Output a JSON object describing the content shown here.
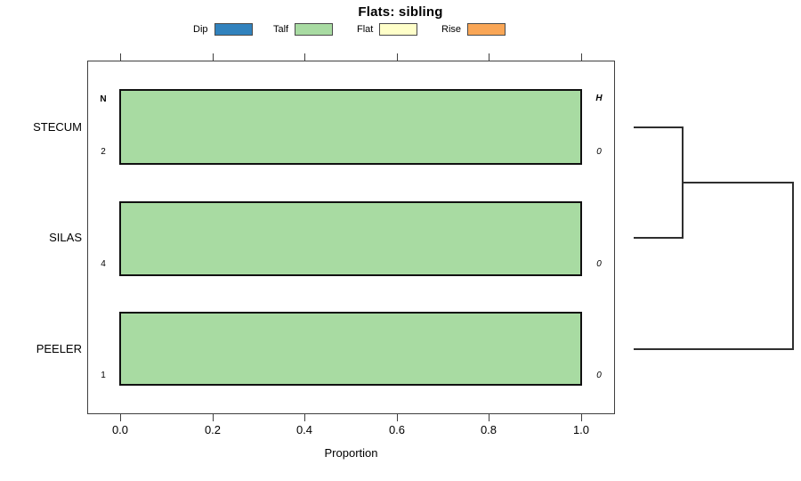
{
  "title": "Flats: sibling",
  "legend": {
    "items": [
      {
        "label": "Dip",
        "color": "#3182BD"
      },
      {
        "label": "Talf",
        "color": "#A8DBA2"
      },
      {
        "label": "Flat",
        "color": "#FFFFC9"
      },
      {
        "label": "Rise",
        "color": "#F9A656"
      }
    ]
  },
  "axes": {
    "xlabel": "Proportion",
    "x_ticks": [
      "0.0",
      "0.2",
      "0.4",
      "0.6",
      "0.8",
      "1.0"
    ]
  },
  "columns": {
    "left_header": "N",
    "right_header": "H"
  },
  "rows": [
    {
      "label": "STECUM",
      "n": "2",
      "h": "0",
      "proportion": 1.0
    },
    {
      "label": "SILAS",
      "n": "4",
      "h": "0",
      "proportion": 1.0
    },
    {
      "label": "PEELER",
      "n": "1",
      "h": "0",
      "proportion": 1.0
    }
  ],
  "chart_data": {
    "type": "bar",
    "orientation": "horizontal",
    "title": "Flats: sibling",
    "xlabel": "Proportion",
    "categories": [
      "STECUM",
      "SILAS",
      "PEELER"
    ],
    "series": [
      {
        "name": "Dip",
        "values": [
          0,
          0,
          0
        ],
        "color": "#3182BD"
      },
      {
        "name": "Talf",
        "values": [
          1.0,
          1.0,
          1.0
        ],
        "color": "#A8DBA2"
      },
      {
        "name": "Flat",
        "values": [
          0,
          0,
          0
        ],
        "color": "#FFFFC9"
      },
      {
        "name": "Rise",
        "values": [
          0,
          0,
          0
        ],
        "color": "#F9A656"
      }
    ],
    "n_values": [
      2,
      4,
      1
    ],
    "h_values": [
      0,
      0,
      0
    ],
    "xlim": [
      0.0,
      1.0
    ],
    "x_ticks": [
      0.0,
      0.2,
      0.4,
      0.6,
      0.8,
      1.0
    ],
    "grid": false,
    "legend_position": "top",
    "dendrogram": {
      "side": "right",
      "merges": [
        {
          "join": [
            "STECUM",
            "SILAS"
          ]
        },
        {
          "join": [
            "STECUM+SILAS",
            "PEELER"
          ]
        }
      ]
    }
  }
}
